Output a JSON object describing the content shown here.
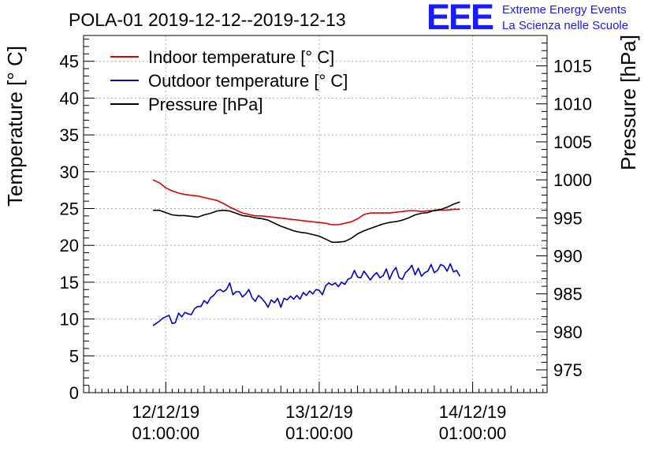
{
  "logo": {
    "mark": "EEE",
    "line1": "Extreme Energy Events",
    "line2": "La Scienza nelle Scuole",
    "color": "#1a1aff"
  },
  "chart_data": {
    "type": "line",
    "title": "POLA-01 2019-12-12--2019-12-13",
    "ylabel": "Temperature [° C]",
    "y2label": "Pressure [hPa]",
    "ylim": [
      0,
      48.5
    ],
    "y2lim": [
      972,
      1019
    ],
    "yticks": [
      "0",
      "5",
      "10",
      "15",
      "20",
      "25",
      "30",
      "35",
      "40",
      "45"
    ],
    "y2ticks": [
      "975",
      "980",
      "985",
      "990",
      "995",
      "1000",
      "1005",
      "1010",
      "1015"
    ],
    "xlim_hours": [
      -12.86,
      59.64
    ],
    "xticks": [
      {
        "date": "12/12/19",
        "time": "01:00:00",
        "hours": 0
      },
      {
        "date": "13/12/19",
        "time": "01:00:00",
        "hours": 24
      },
      {
        "date": "14/12/19",
        "time": "01:00:00",
        "hours": 48
      }
    ],
    "grid": true,
    "legend_position": "top-left",
    "series": [
      {
        "name": "Indoor temperature [° C]",
        "axis": "left",
        "color": "#e00000",
        "x": [
          -2,
          -1,
          0,
          1,
          2,
          3,
          4,
          5,
          6,
          7,
          8,
          9,
          10,
          11,
          12,
          13,
          14,
          15,
          16,
          17,
          18,
          19,
          20,
          21,
          22,
          23,
          24,
          25,
          26,
          27,
          28,
          29,
          30,
          31,
          32,
          33,
          34,
          35,
          36,
          37,
          38,
          39,
          40,
          41,
          42,
          43,
          44,
          45,
          46
        ],
        "values": [
          28.9,
          28.5,
          27.8,
          27.4,
          27.1,
          26.9,
          26.8,
          26.7,
          26.5,
          26.3,
          26.1,
          25.7,
          25.2,
          24.8,
          24.4,
          24.2,
          24.0,
          24.0,
          23.9,
          23.8,
          23.7,
          23.6,
          23.5,
          23.4,
          23.3,
          23.2,
          23.1,
          23.0,
          22.8,
          22.8,
          23.0,
          23.2,
          23.6,
          24.2,
          24.4,
          24.4,
          24.4,
          24.4,
          24.5,
          24.6,
          24.7,
          24.7,
          24.6,
          24.7,
          24.7,
          24.8,
          24.8,
          24.9,
          24.9
        ]
      },
      {
        "name": "Outdoor temperature [° C]",
        "axis": "left",
        "color": "#0000cc",
        "x": [
          -2,
          -1.5,
          -1,
          -0.5,
          0,
          0.5,
          1,
          1.5,
          2,
          2.5,
          3,
          3.5,
          4,
          4.5,
          5,
          5.5,
          6,
          6.5,
          7,
          7.5,
          8,
          8.5,
          9,
          9.5,
          10,
          10.5,
          11,
          11.5,
          12,
          12.5,
          13,
          13.5,
          14,
          14.5,
          15,
          15.5,
          16,
          16.5,
          17,
          17.5,
          18,
          18.5,
          19,
          19.5,
          20,
          20.5,
          21,
          21.5,
          22,
          22.5,
          23,
          23.5,
          24,
          24.5,
          25,
          25.5,
          26,
          26.5,
          27,
          27.5,
          28,
          28.5,
          29,
          29.5,
          30,
          30.5,
          31,
          31.5,
          32,
          32.5,
          33,
          33.5,
          34,
          34.5,
          35,
          35.5,
          36,
          36.5,
          37,
          37.5,
          38,
          38.5,
          39,
          39.5,
          40,
          40.5,
          41,
          41.5,
          42,
          42.5,
          43,
          43.5,
          44,
          44.5,
          45,
          45.5,
          46
        ],
        "values": [
          9.1,
          9.4,
          9.7,
          10.1,
          10.3,
          10.5,
          9.4,
          9.5,
          10.8,
          10.3,
          10.9,
          10.7,
          10.6,
          11.4,
          11.7,
          11.7,
          12.5,
          12.1,
          12.9,
          13.2,
          13.8,
          14.0,
          13.7,
          14.0,
          14.9,
          13.3,
          13.7,
          13.7,
          13.0,
          13.4,
          14.0,
          12.9,
          12.4,
          13.2,
          12.8,
          12.3,
          11.6,
          12.6,
          12.2,
          12.8,
          11.6,
          12.8,
          12.6,
          13.1,
          12.7,
          13.2,
          12.7,
          13.6,
          13.2,
          13.8,
          13.4,
          14.0,
          13.9,
          13.3,
          14.5,
          14.9,
          14.6,
          14.9,
          14.4,
          15.0,
          14.7,
          15.4,
          15.6,
          16.6,
          15.7,
          15.6,
          16.5,
          15.9,
          15.3,
          15.9,
          16.3,
          15.6,
          15.9,
          16.8,
          15.4,
          16.4,
          17.0,
          15.6,
          15.4,
          16.3,
          16.7,
          17.3,
          16.0,
          16.9,
          15.8,
          16.3,
          16.5,
          17.4,
          16.3,
          16.6,
          17.4,
          17.2,
          16.5,
          17.5,
          16.4,
          16.6,
          15.8
        ]
      },
      {
        "name": "Pressure [hPa]",
        "axis": "right",
        "color": "#000000",
        "x": [
          -2,
          -1,
          0,
          1,
          2,
          3,
          4,
          5,
          6,
          7,
          8,
          9,
          10,
          11,
          12,
          13,
          14,
          15,
          16,
          17,
          18,
          19,
          20,
          21,
          22,
          23,
          24,
          25,
          26,
          27,
          28,
          29,
          30,
          31,
          32,
          33,
          34,
          35,
          36,
          37,
          38,
          39,
          40,
          41,
          42,
          43,
          44,
          45,
          46
        ],
        "values": [
          996.0,
          996.0,
          995.7,
          995.4,
          995.3,
          995.3,
          995.2,
          995.1,
          995.4,
          995.6,
          995.9,
          996.0,
          995.9,
          995.6,
          995.3,
          995.2,
          995.0,
          994.9,
          994.7,
          994.3,
          993.9,
          993.6,
          993.3,
          993.1,
          993.0,
          992.8,
          992.6,
          992.2,
          991.8,
          991.8,
          991.9,
          992.3,
          992.9,
          993.3,
          993.6,
          993.9,
          994.2,
          994.4,
          994.5,
          994.7,
          995.0,
          995.4,
          995.6,
          995.7,
          996.0,
          996.1,
          996.4,
          996.8,
          997.1
        ]
      }
    ]
  }
}
